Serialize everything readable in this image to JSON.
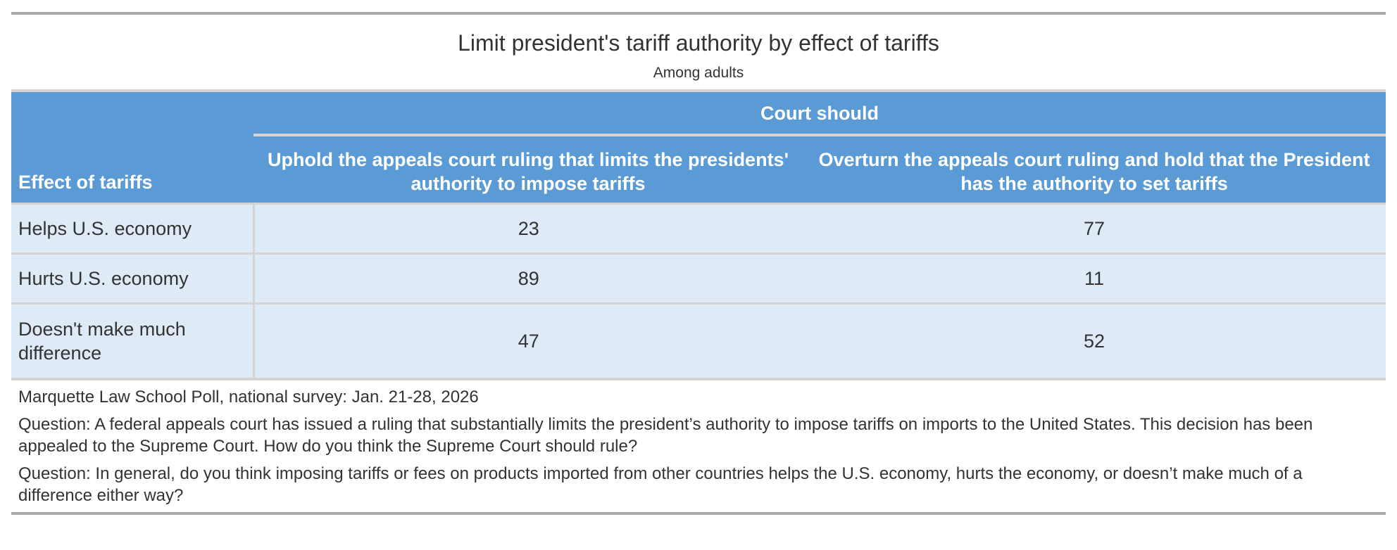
{
  "title": "Limit president's tariff authority by effect of tariffs",
  "subtitle": "Among adults",
  "table": {
    "spanner": "Court should",
    "stub_header": "Effect of tariffs",
    "columns": [
      "Uphold the appeals court ruling that limits the presidents' authority to impose tariffs",
      "Overturn the appeals court ruling and hold that the President has the authority to set tariffs"
    ],
    "rows": [
      {
        "label": "Helps U.S. economy",
        "values": [
          "23",
          "77"
        ]
      },
      {
        "label": "Hurts U.S. economy",
        "values": [
          "89",
          "11"
        ]
      },
      {
        "label": "Doesn't make much difference",
        "values": [
          "47",
          "52"
        ]
      }
    ]
  },
  "notes": {
    "source": "Marquette Law School Poll, national survey: Jan. 21-28, 2026",
    "question1": "Question: A federal appeals court has issued a ruling that substantially limits the president’s authority to impose tariffs on imports to the United States. This decision has been appealed to the Supreme Court. How do you think the Supreme Court should rule?",
    "question2": "Question: In general, do you think imposing tariffs or fees on products imported from other countries helps the U.S. economy, hurts the economy, or doesn’t make much of a difference either way?"
  }
}
